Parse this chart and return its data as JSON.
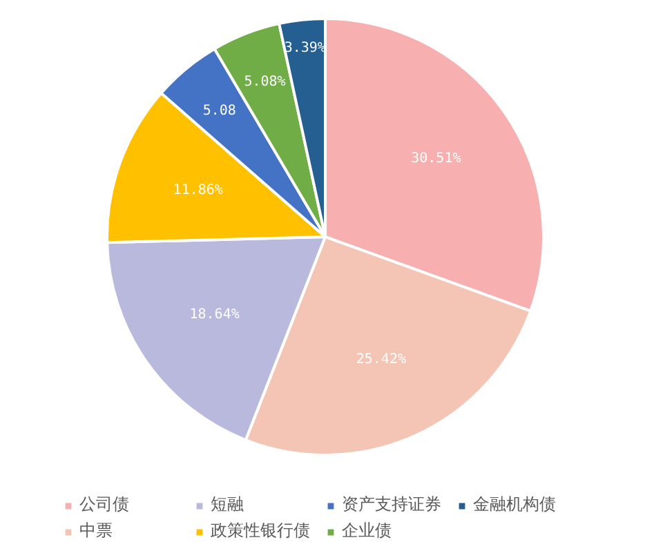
{
  "chart_data": {
    "type": "pie",
    "categories": [
      "公司债",
      "中票",
      "短融",
      "政策性银行债",
      "资产支持证券",
      "企业债",
      "金融机构债"
    ],
    "values": [
      30.51,
      25.42,
      18.64,
      11.86,
      5.08,
      5.08,
      3.39
    ],
    "colors": [
      "#f8afaf",
      "#f4c5b5",
      "#b9b9de",
      "#ffc000",
      "#4472c4",
      "#70ad47",
      "#255e91"
    ],
    "value_labels": [
      "30.51%",
      "25.42%",
      "18.64%",
      "11.86%",
      "5.08",
      "5.08%",
      "3.39%"
    ],
    "legend": "bottom"
  }
}
